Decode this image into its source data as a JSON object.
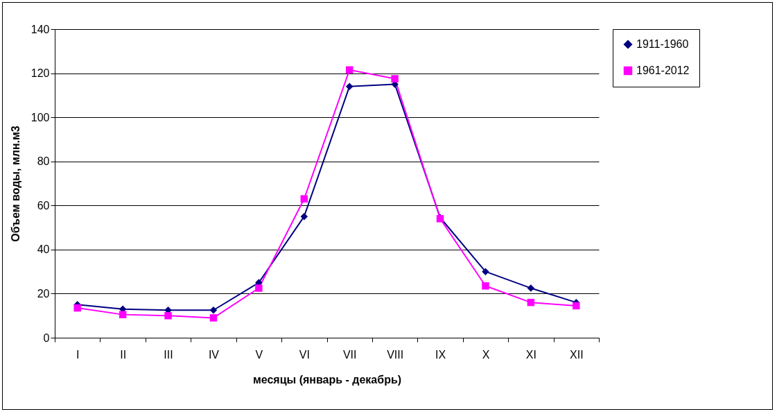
{
  "chart_data": {
    "type": "line",
    "xlabel": "месяцы (январь - декабрь)",
    "ylabel": "Объем воды, млн.м3",
    "categories": [
      "I",
      "II",
      "III",
      "IV",
      "V",
      "VI",
      "VII",
      "VIII",
      "IX",
      "X",
      "XI",
      "XII"
    ],
    "series": [
      {
        "name": "1911-1960",
        "color": "#000080",
        "marker": "diamond",
        "values": [
          15,
          13,
          12.5,
          12.5,
          25,
          55,
          114,
          115,
          54.5,
          30,
          22.5,
          16
        ]
      },
      {
        "name": "1961-2012",
        "color": "#ff00ff",
        "marker": "square",
        "values": [
          13.5,
          10.5,
          10,
          9,
          22.5,
          63,
          121.5,
          117.5,
          54,
          23.5,
          16,
          14.5
        ]
      }
    ],
    "ylim": [
      0,
      140
    ],
    "yticks": [
      0,
      20,
      40,
      60,
      80,
      100,
      120,
      140
    ],
    "grid": "y",
    "legend": "right"
  }
}
